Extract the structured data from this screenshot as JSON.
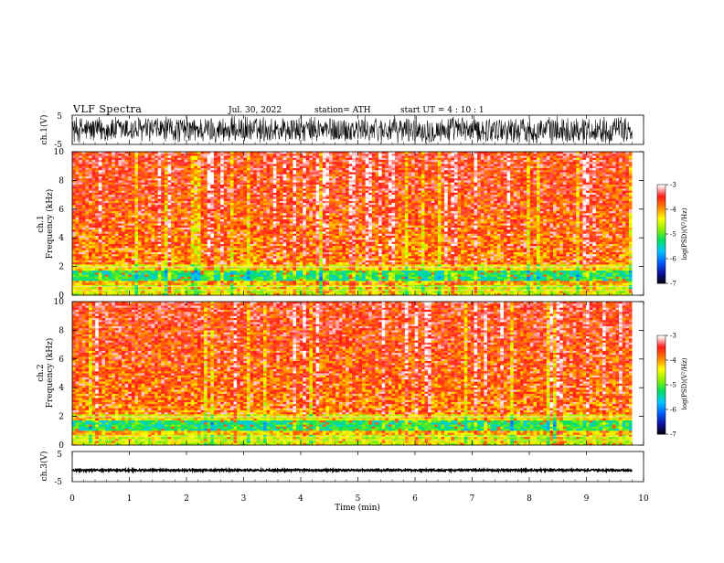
{
  "header": {
    "title": "VLF  Spectra",
    "date": "Jul.  30,  2022",
    "station": "station= ATH",
    "start": "start  UT  =   4  : 10 : 1"
  },
  "chart_data": [
    {
      "id": "ch1",
      "type": "line",
      "ylabel": "ch.1(V)",
      "ylim": [
        -5,
        5
      ],
      "yticks": [
        "5",
        "-5"
      ],
      "description_of_signal": "dense noisy waveform spanning roughly -5 to 5 V from 0 to 9.8 min"
    },
    {
      "id": "ch1_spec",
      "type": "heatmap",
      "ylabel_line1": "ch.1",
      "ylabel_line2": "Frequency  (kHz)",
      "ylim": [
        0,
        10
      ],
      "yticks": [
        "0",
        "2",
        "4",
        "6",
        "8",
        "10"
      ],
      "colorbar": {
        "label": "log(PSD)(V²/Hz)",
        "range": [
          -7,
          -3
        ],
        "ticks": [
          "-3",
          "-4",
          "-5",
          "-6",
          "-7"
        ]
      }
    },
    {
      "id": "ch2_spec",
      "type": "heatmap",
      "ylabel_line1": "ch.2",
      "ylabel_line2": "Frequency  (kHz)",
      "ylim": [
        0,
        10
      ],
      "yticks": [
        "0",
        "2",
        "4",
        "6",
        "8",
        "10"
      ],
      "colorbar": {
        "label": "log(PSD)(V²/Hz)",
        "range": [
          -7,
          -3
        ],
        "ticks": [
          "-3",
          "-4",
          "-5",
          "-6",
          "-7"
        ]
      }
    },
    {
      "id": "ch3",
      "type": "line",
      "ylabel": "ch.3(V)",
      "ylim": [
        -5,
        5
      ],
      "yticks": [
        "5",
        "-5"
      ],
      "approx_level": -1.2
    }
  ],
  "x_axis": {
    "label": "Time  (min)",
    "range": [
      0,
      10
    ],
    "ticks": [
      "0",
      "1",
      "2",
      "3",
      "4",
      "5",
      "6",
      "7",
      "8",
      "9",
      "10"
    ],
    "data_end": 9.8
  },
  "colors": {
    "colormap": [
      "#000000",
      "#1010a0",
      "#0060ff",
      "#00c8ff",
      "#00e060",
      "#90f000",
      "#ffff00",
      "#ff8000",
      "#ff1a1a",
      "#ffffff"
    ]
  }
}
